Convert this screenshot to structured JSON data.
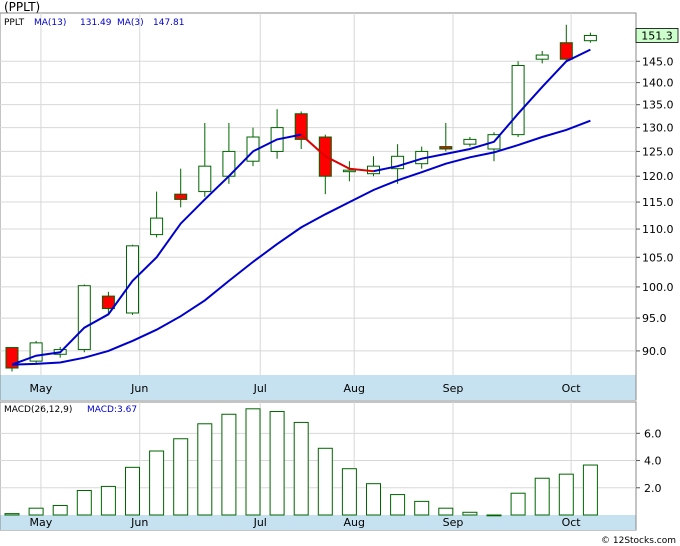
{
  "title": "(PPLT)",
  "watermark": "© 12Stocks.com",
  "colors": {
    "up_fill": "#ffffff",
    "down_fill": "#ff0000",
    "candle_stroke": "#006400",
    "ma_fast": "#0000cc",
    "ma_slow": "#0000cc",
    "ma_highlight": "#dd0000",
    "axis_band": "#c6e2f0",
    "grid": "#d8d8d8",
    "macd_bar": "#006400",
    "price_tag_bg": "#ccffcc"
  },
  "price_panel": {
    "legend": {
      "symbol": "PPLT",
      "ma13_label": "MA(13)",
      "ma13_value": "131.49",
      "ma3_label": "MA(3)",
      "ma3_value": "147.81"
    },
    "last_price_label": "151.3",
    "last_price": 151.3
  },
  "macd_panel": {
    "legend": {
      "label": "MACD(26,12,9)",
      "value_label": "MACD:3.67"
    }
  },
  "x_ticks": [
    {
      "label": "May",
      "index": 1.2
    },
    {
      "label": "Jun",
      "index": 5.3
    },
    {
      "label": "Jul",
      "index": 10.3
    },
    {
      "label": "Aug",
      "index": 14.2
    },
    {
      "label": "Sep",
      "index": 18.3
    },
    {
      "label": "Oct",
      "index": 23.2
    }
  ],
  "chart_data": [
    {
      "type": "candlestick",
      "title": "(PPLT)",
      "xlabel": "",
      "ylabel": "",
      "y_scale": "log",
      "ylim": [
        86.5,
        157
      ],
      "yticks": [
        90.0,
        95.0,
        100.0,
        105.0,
        110.0,
        115.0,
        120.0,
        125.0,
        130.0,
        135.0,
        140.0,
        145.0
      ],
      "grid": true,
      "x_tick_labels": [
        "May",
        "Jun",
        "Jul",
        "Aug",
        "Sep",
        "Oct"
      ],
      "candles": [
        {
          "open": 90.5,
          "close": 87.5,
          "high": 90.5,
          "low": 87.0
        },
        {
          "open": 88.5,
          "close": 91.2,
          "high": 91.5,
          "low": 88.0
        },
        {
          "open": 89.5,
          "close": 90.2,
          "high": 90.6,
          "low": 89.0
        },
        {
          "open": 90.2,
          "close": 100.2,
          "high": 100.4,
          "low": 89.8
        },
        {
          "open": 98.5,
          "close": 96.5,
          "high": 99.2,
          "low": 95.5
        },
        {
          "open": 95.8,
          "close": 107.0,
          "high": 107.2,
          "low": 95.5
        },
        {
          "open": 109.0,
          "close": 112.0,
          "high": 117.0,
          "low": 108.5
        },
        {
          "open": 116.5,
          "close": 115.5,
          "high": 121.5,
          "low": 114.0
        },
        {
          "open": 117.0,
          "close": 122.0,
          "high": 131.0,
          "low": 116.0
        },
        {
          "open": 120.0,
          "close": 125.0,
          "high": 131.0,
          "low": 118.5
        },
        {
          "open": 123.0,
          "close": 128.0,
          "high": 130.0,
          "low": 122.0
        },
        {
          "open": 125.0,
          "close": 130.0,
          "high": 134.0,
          "low": 123.5
        },
        {
          "open": 133.0,
          "close": 127.5,
          "high": 133.5,
          "low": 125.5
        },
        {
          "open": 128.0,
          "close": 120.0,
          "high": 128.5,
          "low": 116.5
        },
        {
          "open": 121.0,
          "close": 121.2,
          "high": 123.0,
          "low": 119.0
        },
        {
          "open": 120.5,
          "close": 122.0,
          "high": 124.0,
          "low": 120.0
        },
        {
          "open": 121.5,
          "close": 124.0,
          "high": 126.5,
          "low": 118.5
        },
        {
          "open": 122.5,
          "close": 125.0,
          "high": 126.0,
          "low": 121.5
        },
        {
          "open": 126.0,
          "close": 125.5,
          "high": 131.0,
          "low": 125.0
        },
        {
          "open": 126.5,
          "close": 127.5,
          "high": 128.0,
          "low": 126.0
        },
        {
          "open": 125.5,
          "close": 128.5,
          "high": 129.0,
          "low": 123.0
        },
        {
          "open": 128.5,
          "close": 144.0,
          "high": 145.0,
          "low": 128.0
        },
        {
          "open": 145.5,
          "close": 146.5,
          "high": 147.5,
          "low": 144.5
        },
        {
          "open": 149.5,
          "close": 145.5,
          "high": 154.0,
          "low": 145.0
        },
        {
          "open": 150.0,
          "close": 151.3,
          "high": 152.0,
          "low": 149.5
        }
      ],
      "series": [
        {
          "name": "MA(3)",
          "values": [
            88.0,
            89.3,
            89.8,
            93.5,
            95.6,
            101.0,
            105.0,
            111.0,
            115.5,
            120.0,
            125.0,
            127.5,
            128.5,
            124.0,
            121.5,
            121.0,
            122.0,
            123.5,
            124.5,
            125.5,
            127.0,
            133.0,
            139.0,
            145.0,
            147.81
          ],
          "highlight_range": [
            12,
            15
          ]
        },
        {
          "name": "MA(13)",
          "values": [
            88.0,
            88.1,
            88.3,
            89.0,
            90.0,
            91.5,
            93.2,
            95.3,
            97.8,
            101.0,
            104.2,
            107.3,
            110.3,
            112.7,
            115.0,
            117.3,
            119.2,
            120.8,
            122.5,
            123.8,
            124.8,
            126.3,
            128.0,
            129.5,
            131.49
          ]
        }
      ]
    },
    {
      "type": "bar",
      "title": "MACD(26,12,9)",
      "xlabel": "",
      "ylabel": "",
      "ylim": [
        0,
        8.3
      ],
      "yticks": [
        2.0,
        4.0,
        6.0
      ],
      "grid": true,
      "values": [
        0.1,
        0.5,
        0.7,
        1.8,
        2.1,
        3.5,
        4.7,
        5.6,
        6.7,
        7.4,
        7.8,
        7.6,
        6.8,
        4.9,
        3.4,
        2.3,
        1.5,
        1.0,
        0.5,
        0.2,
        0.0,
        1.6,
        2.7,
        3.0,
        3.67
      ]
    }
  ]
}
